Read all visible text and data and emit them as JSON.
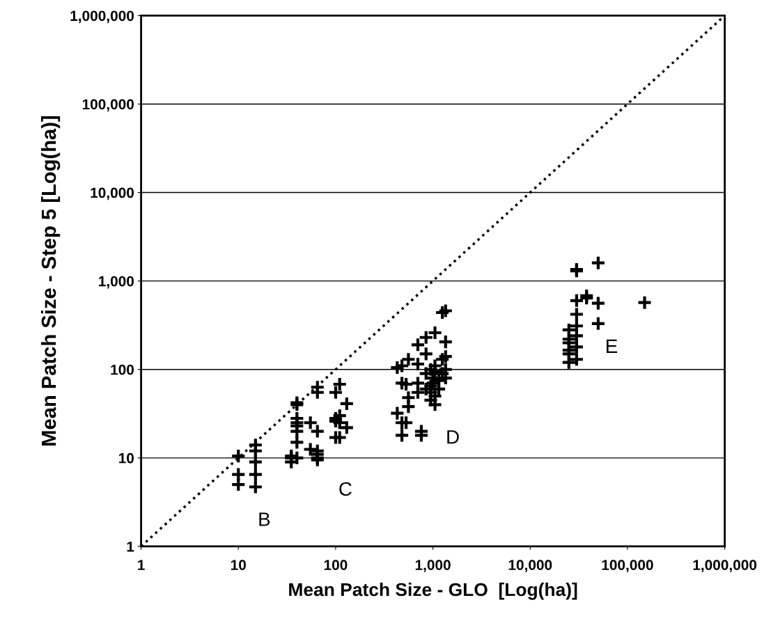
{
  "chart_data": {
    "type": "scatter",
    "xlabel": "Mean Patch Size - GLO  [Log(ha)]",
    "ylabel": "Mean Patch Size - Step 5 [Log(ha)]",
    "log": "xy",
    "grid": "y",
    "marker": "cross",
    "xlim": [
      1,
      1000000
    ],
    "ylim": [
      1,
      1000000
    ],
    "xticks": [
      1,
      10,
      100,
      {
        "value": 1000,
        "label": "1,000"
      },
      {
        "value": 10000,
        "label": "10,000"
      },
      {
        "value": 100000,
        "label": "100,000"
      },
      {
        "value": 1000000,
        "label": "1,000,000"
      }
    ],
    "yticks": [
      1,
      10,
      100,
      {
        "value": 1000,
        "label": "1,000"
      },
      {
        "value": 10000,
        "label": "10,000"
      },
      {
        "value": 100000,
        "label": "100,000"
      },
      {
        "value": 1000000,
        "label": "1,000,000"
      }
    ],
    "series": [
      {
        "color": "#000000",
        "x": [
          10,
          10,
          10,
          15,
          15,
          15,
          15,
          15,
          35,
          35,
          35,
          40,
          40,
          40,
          40,
          40,
          40,
          40,
          40,
          55,
          55,
          65,
          65,
          65,
          65,
          65,
          65,
          65,
          100,
          100,
          100,
          100,
          110,
          110,
          110,
          110,
          130,
          130,
          430,
          430,
          480,
          480,
          480,
          480,
          530,
          530,
          560,
          560,
          560,
          700,
          700,
          700,
          700,
          760,
          760,
          850,
          850,
          850,
          850,
          950,
          950,
          950,
          950,
          1000,
          1000,
          1050,
          1050,
          1050,
          1050,
          1050,
          1150,
          1150,
          1250,
          1250,
          1250,
          1350,
          1350,
          1350,
          1350,
          1350,
          25000,
          25000,
          25000,
          25000,
          25000,
          25000,
          30000,
          30000,
          30000,
          30000,
          30000,
          30000,
          30000,
          30000,
          38000,
          38000,
          50000,
          50000,
          50000,
          150000
        ],
        "values": [
          10.5,
          6.5,
          5,
          14,
          12,
          9,
          6.5,
          4.7,
          9,
          10,
          10.5,
          25,
          20,
          15,
          28,
          23,
          10,
          40,
          42,
          25,
          12.5,
          20,
          12,
          10,
          9.5,
          11,
          55,
          63,
          17,
          26,
          28,
          55,
          68,
          17,
          25,
          30,
          22,
          41,
          105,
          32,
          25,
          18,
          110,
          70,
          68,
          25,
          48,
          38,
          130,
          190,
          70,
          55,
          115,
          20,
          18,
          230,
          150,
          60,
          90,
          100,
          65,
          55,
          45,
          80,
          70,
          260,
          40,
          50,
          95,
          110,
          60,
          75,
          440,
          130,
          90,
          460,
          100,
          140,
          205,
          80,
          120,
          150,
          165,
          200,
          280,
          220,
          1300,
          1350,
          600,
          420,
          310,
          240,
          180,
          130,
          680,
          640,
          1600,
          560,
          330,
          570
        ]
      },
      {
        "type": "line",
        "color": "#000000",
        "line_style": "dotted",
        "marker": "none",
        "x": [
          1,
          1000000
        ],
        "values": [
          1,
          1000000
        ]
      }
    ],
    "annotations": [
      "B",
      "C",
      "D",
      "E"
    ]
  }
}
